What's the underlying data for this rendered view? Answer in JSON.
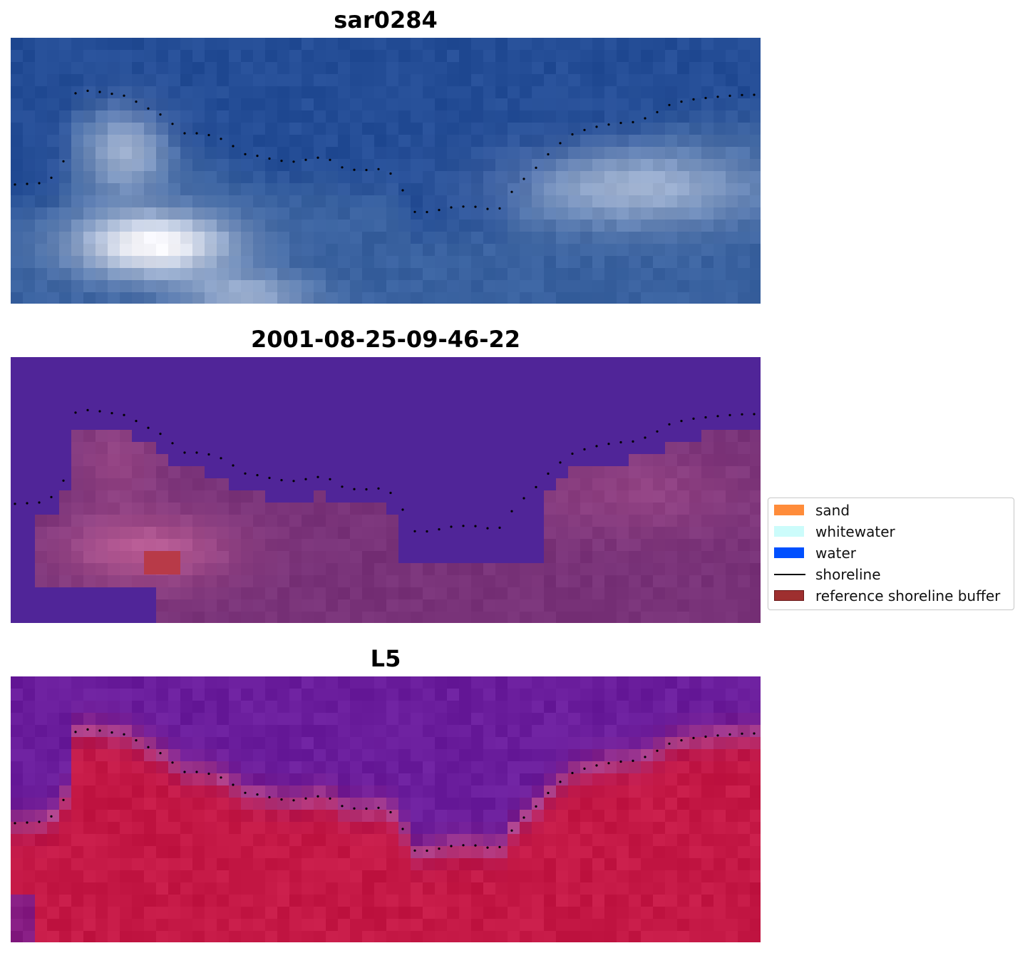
{
  "panels": [
    {
      "title": "sar0284",
      "style": "rgb"
    },
    {
      "title": "2001-08-25-09-46-22",
      "style": "classified"
    },
    {
      "title": "L5",
      "style": "index"
    }
  ],
  "legend": {
    "items": [
      {
        "label": "sand",
        "color": "#ff8c3a",
        "kind": "patch"
      },
      {
        "label": "whitewater",
        "color": "#ccfcfb",
        "kind": "patch"
      },
      {
        "label": "water",
        "color": "#0050ff",
        "kind": "patch"
      },
      {
        "label": "shoreline",
        "color": "#000000",
        "kind": "line"
      },
      {
        "label": "reference shoreline buffer",
        "color": "#9e2f2f",
        "kind": "patch"
      }
    ]
  },
  "colors": {
    "rgb_water": "#244d96",
    "classified_water": "#502598",
    "index_water": "#6a1d9c",
    "index_land": "#c41845"
  }
}
